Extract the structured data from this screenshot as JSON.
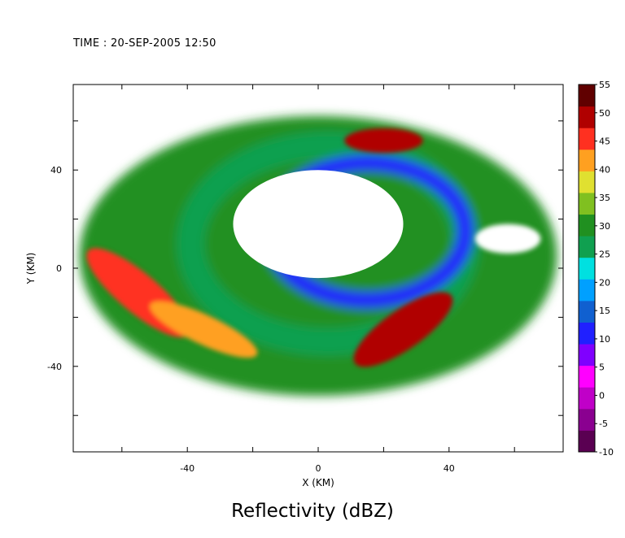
{
  "timestamp": "TIME : 20-SEP-2005 12:50",
  "chart_data": {
    "type": "heatmap",
    "title": "Reflectivity (dBZ)",
    "xlabel": "X (KM)",
    "ylabel": "Y (KM)",
    "xlim": [
      -75,
      75
    ],
    "ylim": [
      -75,
      75
    ],
    "x_ticks": [
      -40,
      0,
      40
    ],
    "y_ticks": [
      40,
      0,
      -40
    ],
    "colorbar": {
      "label": "dBZ",
      "range": [
        -10,
        55
      ],
      "ticks": [
        55,
        50,
        45,
        40,
        35,
        30,
        25,
        20,
        15,
        10,
        5,
        0,
        -5,
        -10
      ],
      "colors": [
        "#5a0052",
        "#8a0090",
        "#c000c8",
        "#ff00ff",
        "#8000ff",
        "#2020ff",
        "#1060d0",
        "#00a0ff",
        "#00e0e0",
        "#10a050",
        "#209020",
        "#80c020",
        "#e0e030",
        "#ffa020",
        "#ff3020",
        "#b00000",
        "#600000"
      ]
    },
    "features": [
      {
        "name": "eye (no echo)",
        "cx": 0,
        "cy": 18,
        "rx": 26,
        "ry": 22,
        "dbz": null
      },
      {
        "name": "eyewall",
        "cx": 3,
        "cy": 10,
        "rx": 42,
        "ry": 40,
        "dbz": 25
      },
      {
        "name": "inner eyewall band NE",
        "cx": 15,
        "cy": 15,
        "rx": 30,
        "ry": 28,
        "dbz": 10
      },
      {
        "name": "maximum rainband SE",
        "cx": 26,
        "cy": -25,
        "rx": 18,
        "ry": 8,
        "dbz": 50
      },
      {
        "name": "northern cell",
        "cx": 20,
        "cy": 52,
        "rx": 12,
        "ry": 5,
        "dbz": 48
      },
      {
        "name": "western rainband",
        "cx": -55,
        "cy": -10,
        "rx": 20,
        "ry": 8,
        "dbz": 44
      },
      {
        "name": "southwest band",
        "cx": -35,
        "cy": -25,
        "rx": 18,
        "ry": 6,
        "dbz": 42
      },
      {
        "name": "eastern clear pocket",
        "cx": 58,
        "cy": 12,
        "rx": 10,
        "ry": 6,
        "dbz": null
      },
      {
        "name": "outer stratiform disk",
        "cx": 0,
        "cy": 5,
        "rx": 73,
        "ry": 57,
        "dbz": 32
      }
    ]
  }
}
